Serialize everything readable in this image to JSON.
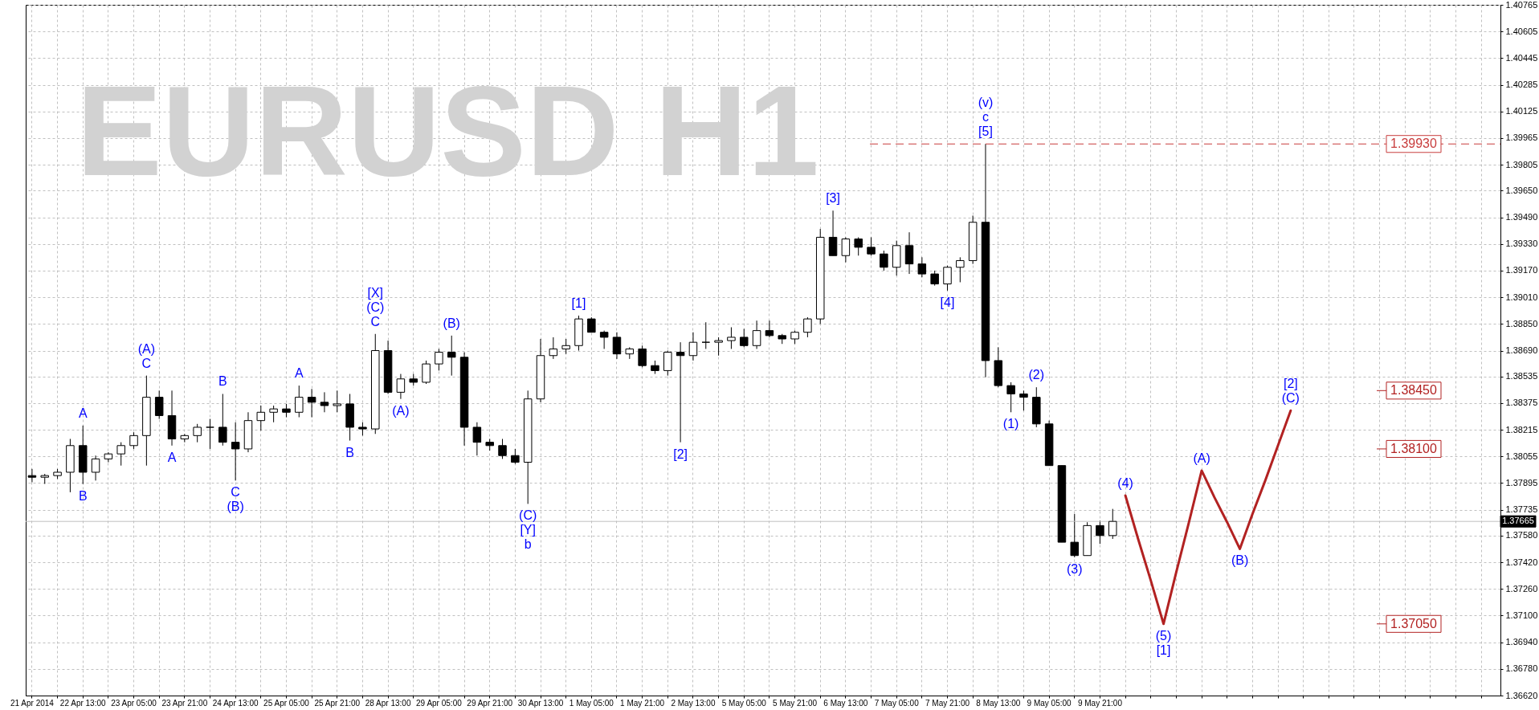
{
  "chart_data": {
    "type": "candlestick",
    "title": "EURUSD H1",
    "categories": [
      "21 Apr 2014",
      null,
      null,
      null,
      "22 Apr 13:00",
      null,
      null,
      null,
      "23 Apr 05:00",
      null,
      null,
      null,
      "23 Apr 21:00",
      null,
      null,
      null,
      "24 Apr 13:00",
      null,
      null,
      null,
      "25 Apr 05:00",
      null,
      null,
      null,
      "25 Apr 21:00",
      null,
      null,
      null,
      "28 Apr 13:00",
      null,
      null,
      null,
      "29 Apr 05:00",
      null,
      null,
      null,
      "29 Apr 21:00",
      null,
      null,
      null,
      "30 Apr 13:00",
      null,
      null,
      null,
      "1 May 05:00",
      null,
      null,
      null,
      "1 May 21:00",
      null,
      null,
      null,
      "2 May 13:00",
      null,
      null,
      null,
      "5 May 05:00",
      null,
      null,
      null,
      "5 May 21:00",
      null,
      null,
      null,
      "6 May 13:00",
      null,
      null,
      null,
      "7 May 05:00",
      null,
      null,
      null,
      "7 May 21:00",
      null,
      null,
      null,
      "8 May 13:00",
      null,
      null,
      null,
      "9 May 05:00",
      null,
      null,
      null,
      "9 May 21:00",
      null,
      null,
      null,
      null,
      null,
      null,
      null,
      null,
      null,
      null,
      null,
      null,
      null,
      null,
      null,
      null,
      null,
      null,
      null,
      null,
      null,
      null,
      null,
      null,
      null,
      null,
      null,
      null,
      null,
      null,
      null
    ],
    "ylim": [
      1.3662,
      1.40765
    ],
    "yticks": [
      {
        "value": 1.3662,
        "label": "1.36620"
      },
      {
        "value": 1.3678,
        "label": "1.36780"
      },
      {
        "value": 1.3694,
        "label": "1.36940"
      },
      {
        "value": 1.371,
        "label": "1.37100"
      },
      {
        "value": 1.3726,
        "label": "1.37260"
      },
      {
        "value": 1.3742,
        "label": "1.37420"
      },
      {
        "value": 1.3758,
        "label": "1.37580"
      },
      1.37735,
      1.37895,
      1.38055,
      1.38215,
      1.38375,
      1.38535,
      {
        "value": 1.3869,
        "label": "1.38690"
      },
      {
        "value": 1.3885,
        "label": "1.38850"
      },
      {
        "value": 1.3901,
        "label": "1.39010"
      },
      {
        "value": 1.3917,
        "label": "1.39170"
      },
      {
        "value": 1.3933,
        "label": "1.39330"
      },
      {
        "value": 1.3949,
        "label": "1.39490"
      },
      {
        "value": 1.3965,
        "label": "1.39650"
      },
      1.39805,
      1.39965,
      1.40125,
      1.40285,
      1.40445,
      1.40605,
      1.40765
    ],
    "grid": true,
    "series": [
      {
        "color": "#000000",
        "ohlc": [
          [
            1.3794,
            1.3798,
            1.379,
            1.3793
          ],
          [
            1.3793,
            1.3795,
            1.3789,
            1.3794
          ],
          [
            1.3794,
            1.3798,
            1.3792,
            1.3796
          ],
          [
            1.3796,
            1.3816,
            1.3784,
            1.3812
          ],
          [
            1.3812,
            1.3824,
            1.3789,
            1.3796
          ],
          [
            1.3796,
            1.3806,
            1.3791,
            1.3804
          ],
          [
            1.3804,
            1.3808,
            1.3802,
            1.3807
          ],
          [
            1.3807,
            1.3814,
            1.38,
            1.3812
          ],
          [
            1.3812,
            1.382,
            1.381,
            1.3818
          ],
          [
            1.3818,
            1.3854,
            1.38,
            1.3841
          ],
          [
            1.3841,
            1.3845,
            1.3828,
            1.383
          ],
          [
            1.383,
            1.3845,
            1.3812,
            1.3816
          ],
          [
            1.3816,
            1.3819,
            1.3814,
            1.3818
          ],
          [
            1.3818,
            1.3825,
            1.3814,
            1.3823
          ],
          [
            1.3823,
            1.3828,
            1.381,
            1.3823
          ],
          [
            1.3823,
            1.3843,
            1.3812,
            1.3814
          ],
          [
            1.3814,
            1.3826,
            1.3791,
            1.381
          ],
          [
            1.381,
            1.3832,
            1.3808,
            1.3827
          ],
          [
            1.3827,
            1.3836,
            1.3821,
            1.3832
          ],
          [
            1.3832,
            1.3836,
            1.3826,
            1.3834
          ],
          [
            1.3834,
            1.3837,
            1.3829,
            1.3832
          ],
          [
            1.3832,
            1.3848,
            1.3829,
            1.3841
          ],
          [
            1.3841,
            1.3846,
            1.3829,
            1.3838
          ],
          [
            1.3838,
            1.3844,
            1.3832,
            1.3836
          ],
          [
            1.3836,
            1.3845,
            1.3832,
            1.3837
          ],
          [
            1.3837,
            1.3843,
            1.3815,
            1.3823
          ],
          [
            1.3823,
            1.3826,
            1.3818,
            1.3822
          ],
          [
            1.3822,
            1.3879,
            1.3819,
            1.3869
          ],
          [
            1.3869,
            1.3875,
            1.3843,
            1.3844
          ],
          [
            1.3844,
            1.3855,
            1.384,
            1.3852
          ],
          [
            1.3852,
            1.3855,
            1.3848,
            1.385
          ],
          [
            1.385,
            1.3863,
            1.3849,
            1.3861
          ],
          [
            1.3861,
            1.387,
            1.3857,
            1.3868
          ],
          [
            1.3868,
            1.3878,
            1.3854,
            1.3865
          ],
          [
            1.3865,
            1.3868,
            1.3812,
            1.3823
          ],
          [
            1.3823,
            1.3826,
            1.3806,
            1.3814
          ],
          [
            1.3814,
            1.3816,
            1.3809,
            1.3812
          ],
          [
            1.3812,
            1.3816,
            1.3804,
            1.3806
          ],
          [
            1.3806,
            1.381,
            1.3801,
            1.3802
          ],
          [
            1.3802,
            1.3845,
            1.3777,
            1.384
          ],
          [
            1.384,
            1.3876,
            1.3838,
            1.3866
          ],
          [
            1.3866,
            1.3877,
            1.3864,
            1.387
          ],
          [
            1.387,
            1.3876,
            1.3867,
            1.3872
          ],
          [
            1.3872,
            1.389,
            1.3869,
            1.3888
          ],
          [
            1.3888,
            1.3889,
            1.388,
            1.388
          ],
          [
            1.388,
            1.3881,
            1.387,
            1.3877
          ],
          [
            1.3877,
            1.388,
            1.3864,
            1.3867
          ],
          [
            1.3867,
            1.3871,
            1.3864,
            1.387
          ],
          [
            1.387,
            1.3872,
            1.3859,
            1.386
          ],
          [
            1.386,
            1.3863,
            1.3855,
            1.3857
          ],
          [
            1.3857,
            1.3869,
            1.3854,
            1.3868
          ],
          [
            1.3868,
            1.3874,
            1.3814,
            1.3866
          ],
          [
            1.3866,
            1.388,
            1.3863,
            1.3874
          ],
          [
            1.3874,
            1.3886,
            1.387,
            1.3874
          ],
          [
            1.3874,
            1.3877,
            1.3866,
            1.3875
          ],
          [
            1.3875,
            1.3883,
            1.387,
            1.3877
          ],
          [
            1.3877,
            1.3882,
            1.3871,
            1.3872
          ],
          [
            1.3872,
            1.3887,
            1.387,
            1.3881
          ],
          [
            1.3881,
            1.3887,
            1.3877,
            1.3878
          ],
          [
            1.3878,
            1.3879,
            1.3873,
            1.3876
          ],
          [
            1.3876,
            1.3881,
            1.3873,
            1.388
          ],
          [
            1.388,
            1.3889,
            1.3877,
            1.3888
          ],
          [
            1.3888,
            1.3942,
            1.3885,
            1.3937
          ],
          [
            1.3937,
            1.3953,
            1.3926,
            1.3926
          ],
          [
            1.3926,
            1.3937,
            1.3922,
            1.3936
          ],
          [
            1.3936,
            1.3937,
            1.3926,
            1.3931
          ],
          [
            1.3931,
            1.3937,
            1.3926,
            1.3927
          ],
          [
            1.3927,
            1.3929,
            1.3917,
            1.3919
          ],
          [
            1.3919,
            1.3935,
            1.3914,
            1.3932
          ],
          [
            1.3932,
            1.394,
            1.3915,
            1.3921
          ],
          [
            1.3921,
            1.3925,
            1.3913,
            1.3915
          ],
          [
            1.3915,
            1.3917,
            1.3908,
            1.3909
          ],
          [
            1.3909,
            1.392,
            1.3905,
            1.3919
          ],
          [
            1.3919,
            1.3925,
            1.391,
            1.3923
          ],
          [
            1.3923,
            1.395,
            1.3921,
            1.3946
          ],
          [
            1.3946,
            1.3993,
            1.3853,
            1.3863
          ],
          [
            1.3863,
            1.3871,
            1.3847,
            1.3848
          ],
          [
            1.3848,
            1.385,
            1.3832,
            1.3843
          ],
          [
            1.3843,
            1.3845,
            1.3833,
            1.3841
          ],
          [
            1.3841,
            1.3847,
            1.3823,
            1.3825
          ],
          [
            1.3825,
            1.3827,
            1.38,
            1.38
          ],
          [
            1.38,
            1.38,
            1.3754,
            1.3754
          ],
          [
            1.3754,
            1.3771,
            1.3745,
            1.3746
          ],
          [
            1.3746,
            1.3766,
            1.3746,
            1.3764
          ],
          [
            1.3764,
            1.3767,
            1.3753,
            1.3758
          ],
          [
            1.3758,
            1.3774,
            1.3756,
            1.37665
          ],
          null,
          null,
          null,
          null,
          null,
          null,
          null,
          null,
          null,
          null,
          null,
          null,
          null,
          null,
          null,
          null,
          null,
          null,
          null,
          null,
          null,
          null,
          null,
          null,
          null,
          null,
          null,
          null,
          null,
          null
        ]
      },
      {
        "type": "line",
        "color": "#b22222",
        "values": [
          null,
          null,
          null,
          null,
          null,
          null,
          null,
          null,
          null,
          null,
          null,
          null,
          null,
          null,
          null,
          null,
          null,
          null,
          null,
          null,
          null,
          null,
          null,
          null,
          null,
          null,
          null,
          null,
          null,
          null,
          null,
          null,
          null,
          null,
          null,
          null,
          null,
          null,
          null,
          null,
          null,
          null,
          null,
          null,
          null,
          null,
          null,
          null,
          null,
          null,
          null,
          null,
          null,
          null,
          null,
          null,
          null,
          null,
          null,
          null,
          null,
          null,
          null,
          null,
          null,
          null,
          null,
          null,
          null,
          null,
          null,
          null,
          null,
          null,
          null,
          null,
          null,
          null,
          null,
          null,
          null,
          null,
          null,
          null,
          null,
          null,
          1.3782,
          1.3756,
          1.3731,
          1.3705,
          1.3736,
          1.3766,
          1.3797,
          1.3781,
          1.3766,
          1.375,
          1.3771,
          1.3791,
          1.3812,
          1.3833,
          null,
          null,
          null,
          null,
          null,
          null,
          null,
          null,
          null,
          null,
          null,
          null,
          null,
          null,
          null,
          null
        ]
      }
    ],
    "ref_lines": [
      {
        "axis": "y",
        "value": 1.3993,
        "label": "1.39930",
        "color": "#c83c3c",
        "line_style": "dashed"
      },
      {
        "axis": "y",
        "value": 1.37665,
        "label": "1.37665",
        "color": "#c0c0c0",
        "line_style": "solid"
      },
      {
        "axis": "y",
        "value": 1.3845,
        "label": "1.38450",
        "color": "#b22222"
      },
      {
        "axis": "y",
        "value": 1.381,
        "label": "1.38100",
        "color": "#b22222"
      },
      {
        "axis": "y",
        "value": 1.3705,
        "label": "1.37050",
        "color": "#b22222"
      }
    ],
    "annotations": [
      {
        "text": "A",
        "x": "22 Apr 13:00",
        "y": 1.3824
      },
      {
        "text": "B",
        "x": "22 Apr 13:00",
        "y": 1.3789
      },
      {
        "text": "C",
        "y": 1.3854
      },
      {
        "text": "(A)",
        "y": 1.3854
      },
      {
        "text": "A",
        "y": 1.3812
      },
      {
        "text": "B",
        "y": 1.3843
      },
      {
        "text": "C",
        "x": "24 Apr 13:00",
        "y": 1.3791
      },
      {
        "text": "(B)",
        "x": "24 Apr 13:00",
        "y": 1.3791
      },
      {
        "text": "A",
        "y": 1.3848
      },
      {
        "text": "B",
        "y": 1.3815
      },
      {
        "text": "C",
        "y": 1.3879
      },
      {
        "text": "(C)",
        "y": 1.3879
      },
      {
        "text": "[X]",
        "y": 1.3879
      },
      {
        "text": "(A)",
        "y": 1.384
      },
      {
        "text": "(B)",
        "y": 1.3878
      },
      {
        "text": "(C)",
        "y": 1.3777
      },
      {
        "text": "[Y]",
        "y": 1.3777
      },
      {
        "text": "b",
        "y": 1.3777
      },
      {
        "text": "[1]",
        "y": 1.389
      },
      {
        "text": "[2]",
        "y": 1.3814
      },
      {
        "text": "[3]",
        "y": 1.3953
      },
      {
        "text": "[4]",
        "y": 1.3905
      },
      {
        "text": "[5]",
        "y": 1.3993
      },
      {
        "text": "c",
        "y": 1.3993
      },
      {
        "text": "(v)",
        "y": 1.3993
      },
      {
        "text": "(1)",
        "y": 1.3832
      },
      {
        "text": "(2)",
        "y": 1.3847
      },
      {
        "text": "(3)",
        "y": 1.3745
      },
      {
        "text": "(4)",
        "y": 1.3782
      },
      {
        "text": "(5)",
        "y": 1.3705
      },
      {
        "text": "[1]",
        "y": 1.3705
      },
      {
        "text": "(A)",
        "y": 1.3797
      },
      {
        "text": "(B)",
        "y": 1.375
      },
      {
        "text": "(C)",
        "y": 1.3833
      },
      {
        "text": "[2]",
        "y": 1.3833
      }
    ]
  }
}
